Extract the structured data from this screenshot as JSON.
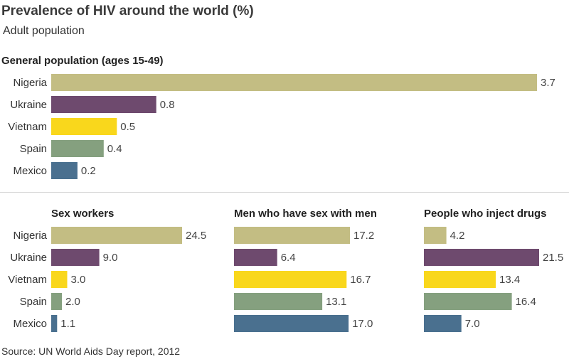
{
  "title": "Prevalence of HIV around the world (%)",
  "subtitle": "Adult population",
  "source": "Source: UN World Aids Day report, 2012",
  "colors": {
    "Nigeria": "#c3bd83",
    "Ukraine": "#6e4a6e",
    "Vietnam": "#f9d71c",
    "Spain": "#85a07f",
    "Mexico": "#4a708f"
  },
  "chart_data": [
    {
      "type": "bar",
      "orientation": "horizontal",
      "title": "General population (ages 15-49)",
      "categories": [
        "Nigeria",
        "Ukraine",
        "Vietnam",
        "Spain",
        "Mexico"
      ],
      "values": [
        3.7,
        0.8,
        0.5,
        0.4,
        0.2
      ],
      "value_labels": [
        "3.7",
        "0.8",
        "0.5",
        "0.4",
        "0.2"
      ]
    },
    {
      "type": "bar",
      "orientation": "horizontal",
      "title": "Sex workers",
      "categories": [
        "Nigeria",
        "Ukraine",
        "Vietnam",
        "Spain",
        "Mexico"
      ],
      "values": [
        24.5,
        9.0,
        3.0,
        2.0,
        1.1
      ],
      "value_labels": [
        "24.5",
        "9.0",
        "3.0",
        "2.0",
        "1.1"
      ]
    },
    {
      "type": "bar",
      "orientation": "horizontal",
      "title": "Men who have sex with men",
      "categories": [
        "Nigeria",
        "Ukraine",
        "Vietnam",
        "Spain",
        "Mexico"
      ],
      "values": [
        17.2,
        6.4,
        16.7,
        13.1,
        17.0
      ],
      "value_labels": [
        "17.2",
        "6.4",
        "16.7",
        "13.1",
        "17.0"
      ]
    },
    {
      "type": "bar",
      "orientation": "horizontal",
      "title": "People who inject drugs",
      "categories": [
        "Nigeria",
        "Ukraine",
        "Vietnam",
        "Spain",
        "Mexico"
      ],
      "values": [
        4.2,
        21.5,
        13.4,
        16.4,
        7.0
      ],
      "value_labels": [
        "4.2",
        "21.5",
        "13.4",
        "16.4",
        "7.0"
      ]
    }
  ]
}
